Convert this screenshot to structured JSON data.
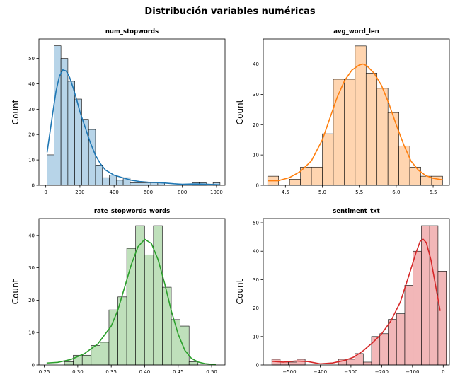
{
  "figure": {
    "title": "Distribución variables numéricas"
  },
  "chart_data": [
    {
      "type": "histogram",
      "title": "num_stopwords",
      "xlabel": "",
      "ylabel": "Count",
      "color": "#1f77b4",
      "fill": "#b7d4e8",
      "xlim": [
        -40,
        1050
      ],
      "ylim": [
        0,
        57.7
      ],
      "xticks": [
        0,
        200,
        400,
        600,
        800,
        1000
      ],
      "yticks": [
        0,
        10,
        20,
        30,
        40,
        50
      ],
      "bin_edges": [
        8,
        48.5,
        89,
        129.5,
        170,
        210.5,
        251,
        291.5,
        332,
        372.5,
        413,
        453.5,
        494,
        534.5,
        575,
        615.5,
        656,
        696.5,
        737,
        777.5,
        818,
        858.5,
        899,
        939.5,
        980,
        1020.5
      ],
      "counts": [
        12,
        55,
        50,
        41,
        34,
        26,
        22,
        8,
        3,
        4,
        2,
        3,
        1,
        1,
        1,
        1,
        1,
        0,
        0,
        0,
        0,
        1,
        1,
        0,
        1
      ],
      "kde": {
        "x": [
          8,
          40,
          60,
          80,
          100,
          120,
          140,
          160,
          180,
          200,
          230,
          260,
          290,
          320,
          350,
          400,
          450,
          500,
          550,
          600,
          650,
          700,
          750,
          800,
          850,
          900,
          950,
          1020
        ],
        "y": [
          13,
          28,
          37,
          43,
          45.5,
          45,
          42.5,
          38.5,
          34,
          29,
          23,
          17,
          12,
          8.5,
          6,
          4,
          3,
          2,
          1.5,
          1.2,
          1.1,
          0.9,
          0.6,
          0.4,
          0.5,
          0.5,
          0.4,
          0.2
        ]
      }
    },
    {
      "type": "histogram",
      "title": "avg_word_len",
      "xlabel": "",
      "ylabel": "Count",
      "color": "#ff7f0e",
      "fill": "#ffd5b0",
      "xlim": [
        4.2,
        6.72
      ],
      "ylim": [
        0,
        48.3
      ],
      "xticks": [
        4.5,
        5.0,
        5.5,
        6.0,
        6.5
      ],
      "yticks": [
        0,
        10,
        20,
        30,
        40
      ],
      "bin_edges": [
        4.26,
        4.408,
        4.556,
        4.704,
        4.852,
        5.0,
        5.148,
        5.296,
        5.444,
        5.592,
        5.74,
        5.888,
        6.036,
        6.184,
        6.332,
        6.48,
        6.628
      ],
      "counts": [
        3,
        0,
        2,
        6,
        6,
        17,
        35,
        35,
        46,
        37,
        32,
        24,
        13,
        6,
        3,
        3
      ],
      "kde": {
        "x": [
          4.26,
          4.4,
          4.55,
          4.7,
          4.85,
          5.0,
          5.1,
          5.2,
          5.3,
          5.4,
          5.5,
          5.55,
          5.6,
          5.7,
          5.8,
          5.9,
          6.0,
          6.1,
          6.2,
          6.3,
          6.4,
          6.5,
          6.63
        ],
        "y": [
          1.5,
          1.5,
          2.5,
          4.5,
          8,
          15,
          22,
          29,
          34.5,
          38,
          39.7,
          40,
          39.5,
          37,
          33,
          27,
          20,
          13.5,
          8,
          5,
          3.2,
          2.3,
          1.8
        ]
      }
    },
    {
      "type": "histogram",
      "title": "rate_stopwords_words",
      "xlabel": "",
      "ylabel": "Count",
      "color": "#2ca02c",
      "fill": "#bfe0bb",
      "xlim": [
        0.242,
        0.52
      ],
      "ylim": [
        0,
        45.2
      ],
      "xticks": [
        0.25,
        0.3,
        0.35,
        0.4,
        0.45,
        0.5
      ],
      "yticks": [
        0,
        10,
        20,
        30,
        40
      ],
      "bin_edges": [
        0.2535,
        0.2668,
        0.2801,
        0.2934,
        0.3067,
        0.32,
        0.3333,
        0.3466,
        0.3599,
        0.3732,
        0.3865,
        0.3998,
        0.4131,
        0.4264,
        0.4397,
        0.453,
        0.4663,
        0.4796,
        0.4929,
        0.5062
      ],
      "counts": [
        0,
        0,
        1,
        3,
        3,
        6,
        7,
        17,
        21,
        36,
        43,
        34,
        43,
        24,
        14,
        12,
        1,
        0,
        0,
        1
      ],
      "kde": {
        "x": [
          0.2535,
          0.27,
          0.29,
          0.31,
          0.33,
          0.35,
          0.36,
          0.37,
          0.38,
          0.39,
          0.4,
          0.41,
          0.42,
          0.43,
          0.44,
          0.45,
          0.46,
          0.47,
          0.48,
          0.49,
          0.5062
        ],
        "y": [
          0.6,
          0.8,
          1.7,
          3.5,
          6.5,
          12,
          17,
          24,
          31,
          36.5,
          38.8,
          37.5,
          32.5,
          25,
          16.5,
          9.5,
          4.5,
          2,
          0.9,
          0.4,
          0.1
        ]
      }
    },
    {
      "type": "histogram",
      "title": "sentiment_txt",
      "xlabel": "",
      "ylabel": "Count",
      "color": "#d62728",
      "fill": "#f2b7b8",
      "xlim": [
        -585,
        20
      ],
      "ylim": [
        0,
        51.5
      ],
      "xticks": [
        -500,
        -400,
        -300,
        -200,
        -100,
        0
      ],
      "yticks": [
        0,
        10,
        20,
        30,
        40,
        50
      ],
      "bin_edges": [
        -557,
        -530,
        -503,
        -476,
        -449,
        -422,
        -395,
        -368,
        -341,
        -314,
        -287,
        -260,
        -233,
        -206,
        -179,
        -152,
        -125,
        -98,
        -71,
        -44,
        -17,
        10
      ],
      "counts": [
        2,
        1,
        1,
        2,
        0,
        0,
        0,
        0,
        2,
        2,
        4,
        1,
        10,
        11,
        16,
        18,
        28,
        40,
        49,
        49,
        33
      ],
      "kde": {
        "x": [
          -557,
          -520,
          -480,
          -440,
          -400,
          -360,
          -320,
          -290,
          -260,
          -230,
          -200,
          -170,
          -140,
          -110,
          -90,
          -75,
          -65,
          -55,
          -40,
          -25,
          -10
        ],
        "y": [
          1.3,
          1.0,
          1.4,
          1.2,
          0.4,
          0.7,
          1.6,
          2.8,
          5,
          7.8,
          11,
          15.5,
          22,
          32,
          39,
          43.5,
          44.2,
          43,
          37,
          28,
          19
        ]
      }
    }
  ]
}
